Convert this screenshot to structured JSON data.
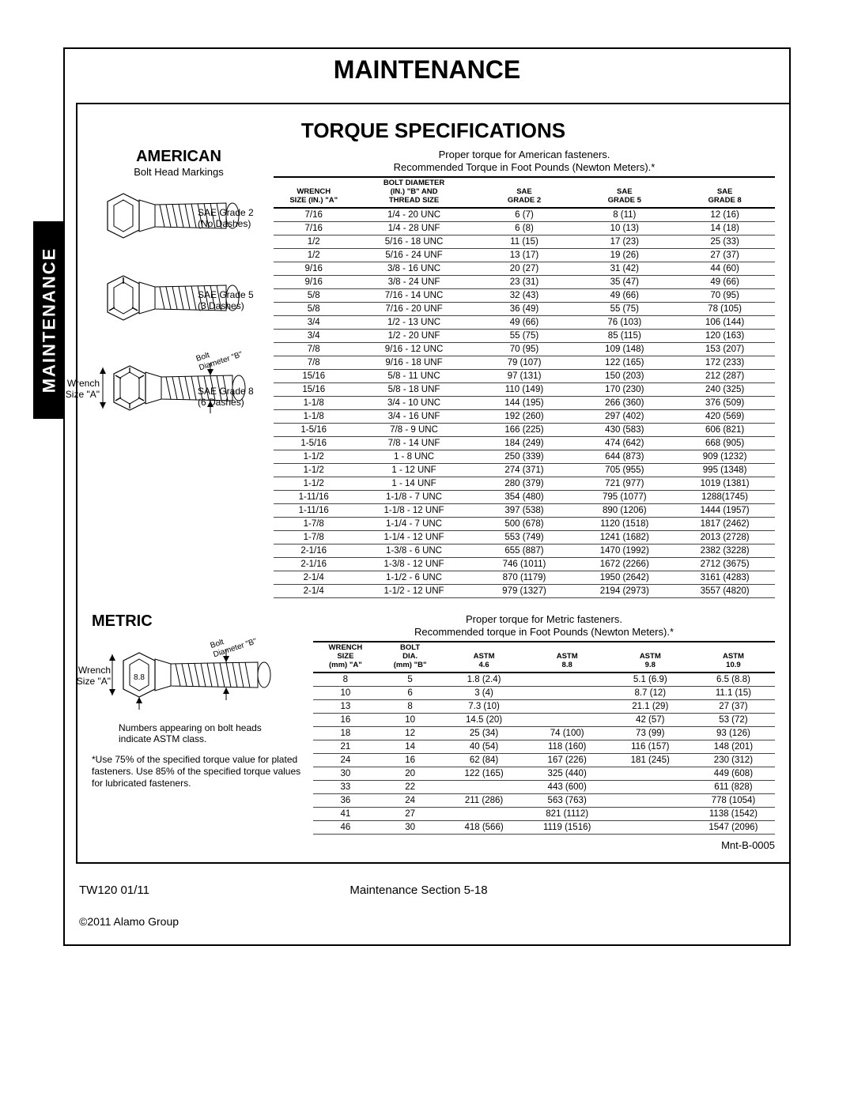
{
  "page_title": "MAINTENANCE",
  "side_tab": "MAINTENANCE",
  "spec_title": "TORQUE SPECIFICATIONS",
  "american": {
    "heading": "AMERICAN",
    "subheading": "Bolt Head Markings",
    "caption1": "Proper torque for American fasteners.",
    "caption2": "Recommended Torque in Foot Pounds (Newton Meters).*",
    "grades": [
      {
        "label1": "SAE Grade 2",
        "label2": "(No Dashes)"
      },
      {
        "label1": "SAE Grade 5",
        "label2": "(3 Dashes)"
      },
      {
        "label1": "SAE Grade 8",
        "label2": "(6 Dashes)"
      }
    ],
    "wrench_label1": "Wrench",
    "wrench_label2": "Size \"A\"",
    "bolt_dia_label1": "Bolt",
    "bolt_dia_label2": "Diameter \"B\"",
    "headers": {
      "c1a": "WRENCH",
      "c1b": "SIZE (IN.) \"A\"",
      "c2a": "BOLT DIAMETER",
      "c2b": "(IN.) \"B\" AND",
      "c2c": "THREAD SIZE",
      "c3a": "SAE",
      "c3b": "GRADE 2",
      "c4a": "SAE",
      "c4b": "GRADE 5",
      "c5a": "SAE",
      "c5b": "GRADE 8"
    },
    "rows": [
      [
        "7/16",
        "1/4 - 20 UNC",
        "6 (7)",
        "8 (11)",
        "12 (16)"
      ],
      [
        "7/16",
        "1/4 - 28 UNF",
        "6 (8)",
        "10 (13)",
        "14 (18)"
      ],
      [
        "1/2",
        "5/16 - 18 UNC",
        "11 (15)",
        "17 (23)",
        "25 (33)"
      ],
      [
        "1/2",
        "5/16 - 24 UNF",
        "13 (17)",
        "19 (26)",
        "27 (37)"
      ],
      [
        "9/16",
        "3/8 - 16 UNC",
        "20 (27)",
        "31 (42)",
        "44 (60)"
      ],
      [
        "9/16",
        "3/8 - 24 UNF",
        "23 (31)",
        "35 (47)",
        "49 (66)"
      ],
      [
        "5/8",
        "7/16 - 14 UNC",
        "32 (43)",
        "49 (66)",
        "70 (95)"
      ],
      [
        "5/8",
        "7/16 - 20 UNF",
        "36 (49)",
        "55 (75)",
        "78 (105)"
      ],
      [
        "3/4",
        "1/2 - 13 UNC",
        "49 (66)",
        "76 (103)",
        "106 (144)"
      ],
      [
        "3/4",
        "1/2 - 20 UNF",
        "55 (75)",
        "85 (115)",
        "120 (163)"
      ],
      [
        "7/8",
        "9/16 - 12 UNC",
        "70 (95)",
        "109 (148)",
        "153 (207)"
      ],
      [
        "7/8",
        "9/16 - 18 UNF",
        "79 (107)",
        "122 (165)",
        "172 (233)"
      ],
      [
        "15/16",
        "5/8 - 11 UNC",
        "97 (131)",
        "150 (203)",
        "212 (287)"
      ],
      [
        "15/16",
        "5/8 - 18 UNF",
        "110 (149)",
        "170 (230)",
        "240 (325)"
      ],
      [
        "1-1/8",
        "3/4 - 10 UNC",
        "144 (195)",
        "266 (360)",
        "376 (509)"
      ],
      [
        "1-1/8",
        "3/4 - 16 UNF",
        "192 (260)",
        "297 (402)",
        "420 (569)"
      ],
      [
        "1-5/16",
        "7/8 - 9 UNC",
        "166 (225)",
        "430 (583)",
        "606 (821)"
      ],
      [
        "1-5/16",
        "7/8 - 14 UNF",
        "184 (249)",
        "474 (642)",
        "668 (905)"
      ],
      [
        "1-1/2",
        "1 - 8 UNC",
        "250 (339)",
        "644 (873)",
        "909 (1232)"
      ],
      [
        "1-1/2",
        "1 - 12 UNF",
        "274 (371)",
        "705 (955)",
        "995 (1348)"
      ],
      [
        "1-1/2",
        "1 - 14 UNF",
        "280 (379)",
        "721 (977)",
        "1019 (1381)"
      ],
      [
        "1-11/16",
        "1-1/8 - 7 UNC",
        "354 (480)",
        "795 (1077)",
        "1288(1745)"
      ],
      [
        "1-11/16",
        "1-1/8 - 12 UNF",
        "397 (538)",
        "890 (1206)",
        "1444 (1957)"
      ],
      [
        "1-7/8",
        "1-1/4 - 7 UNC",
        "500 (678)",
        "1120 (1518)",
        "1817 (2462)"
      ],
      [
        "1-7/8",
        "1-1/4 - 12 UNF",
        "553 (749)",
        "1241 (1682)",
        "2013 (2728)"
      ],
      [
        "2-1/16",
        "1-3/8 - 6 UNC",
        "655 (887)",
        "1470 (1992)",
        "2382 (3228)"
      ],
      [
        "2-1/16",
        "1-3/8 - 12 UNF",
        "746 (1011)",
        "1672 (2266)",
        "2712 (3675)"
      ],
      [
        "2-1/4",
        "1-1/2 - 6 UNC",
        "870 (1179)",
        "1950 (2642)",
        "3161 (4283)"
      ],
      [
        "2-1/4",
        "1-1/2 - 12 UNF",
        "979 (1327)",
        "2194 (2973)",
        "3557 (4820)"
      ]
    ]
  },
  "metric": {
    "heading": "METRIC",
    "caption1": "Proper torque for Metric fasteners.",
    "caption2": "Recommended torque in Foot Pounds (Newton Meters).*",
    "wrench_label1": "Wrench",
    "wrench_label2": "Size \"A\"",
    "bolt_dia_label1": "Bolt",
    "bolt_dia_label2": "Diameter \"B\"",
    "note1": "Numbers appearing on bolt heads",
    "note2": "indicate ASTM class.",
    "footnote": "*Use 75% of the specified torque value for plated fasteners.  Use 85% of the specified torque values for lubricated fasteners.",
    "headers": {
      "c1a": "WRENCH",
      "c1b": "SIZE",
      "c1c": "(mm) \"A\"",
      "c2a": "BOLT",
      "c2b": "DIA.",
      "c2c": "(mm) \"B\"",
      "c3": "ASTM\n4.6",
      "c4": "ASTM\n8.8",
      "c5": "ASTM\n9.8",
      "c6": "ASTM\n10.9"
    },
    "rows": [
      [
        "8",
        "5",
        "1.8 (2.4)",
        "",
        "5.1 (6.9)",
        "6.5 (8.8)"
      ],
      [
        "10",
        "6",
        "3 (4)",
        "",
        "8.7 (12)",
        "11.1 (15)"
      ],
      [
        "13",
        "8",
        "7.3 (10)",
        "",
        "21.1 (29)",
        "27 (37)"
      ],
      [
        "16",
        "10",
        "14.5 (20)",
        "",
        "42 (57)",
        "53 (72)"
      ],
      [
        "18",
        "12",
        "25 (34)",
        "74 (100)",
        "73 (99)",
        "93 (126)"
      ],
      [
        "21",
        "14",
        "40 (54)",
        "118 (160)",
        "116 (157)",
        "148 (201)"
      ],
      [
        "24",
        "16",
        "62 (84)",
        "167 (226)",
        "181 (245)",
        "230 (312)"
      ],
      [
        "30",
        "20",
        "122 (165)",
        "325 (440)",
        "",
        "449 (608)"
      ],
      [
        "33",
        "22",
        "",
        "443 (600)",
        "",
        "611 (828)"
      ],
      [
        "36",
        "24",
        "211 (286)",
        "563 (763)",
        "",
        "778 (1054)"
      ],
      [
        "41",
        "27",
        "",
        "821 (1112)",
        "",
        "1138 (1542)"
      ],
      [
        "46",
        "30",
        "418 (566)",
        "1119 (1516)",
        "",
        "1547 (2096)"
      ]
    ]
  },
  "doc_code": "Mnt-B-0005",
  "footer_left": "TW120  01/11",
  "footer_center": "Maintenance Section 5-18",
  "copyright": "©2011 Alamo Group"
}
